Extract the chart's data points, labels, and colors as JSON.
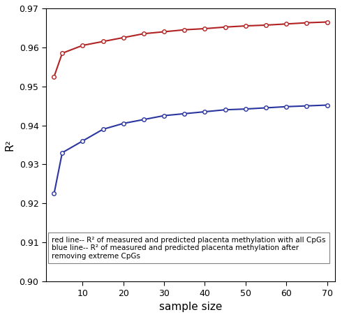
{
  "x": [
    3,
    5,
    10,
    15,
    20,
    25,
    30,
    35,
    40,
    45,
    50,
    55,
    60,
    65,
    70
  ],
  "red_y": [
    0.9525,
    0.9585,
    0.9605,
    0.9615,
    0.9625,
    0.9635,
    0.964,
    0.9645,
    0.9648,
    0.9652,
    0.9655,
    0.9657,
    0.966,
    0.9663,
    0.9665
  ],
  "blue_y": [
    0.9225,
    0.933,
    0.936,
    0.939,
    0.9405,
    0.9415,
    0.9425,
    0.943,
    0.9435,
    0.944,
    0.9442,
    0.9445,
    0.9448,
    0.945,
    0.9452
  ],
  "red_color": "#b22222",
  "blue_color": "#2a35a0",
  "xlabel": "sample size",
  "ylabel": "R²",
  "ylim": [
    0.9,
    0.97
  ],
  "xlim": [
    1,
    72
  ],
  "xticks": [
    10,
    20,
    30,
    40,
    50,
    60,
    70
  ],
  "yticks": [
    0.9,
    0.91,
    0.92,
    0.93,
    0.94,
    0.95,
    0.96,
    0.97
  ],
  "legend_text_red": "red line-- R² of measured and predicted placenta methylation with all CpGs",
  "legend_text_blue": "blue line-- R² of measured and predicted placenta methylation after\nremoving extreme CpGs",
  "background_color": "#ffffff",
  "marker": "o",
  "marker_size": 4,
  "linewidth": 1.5
}
